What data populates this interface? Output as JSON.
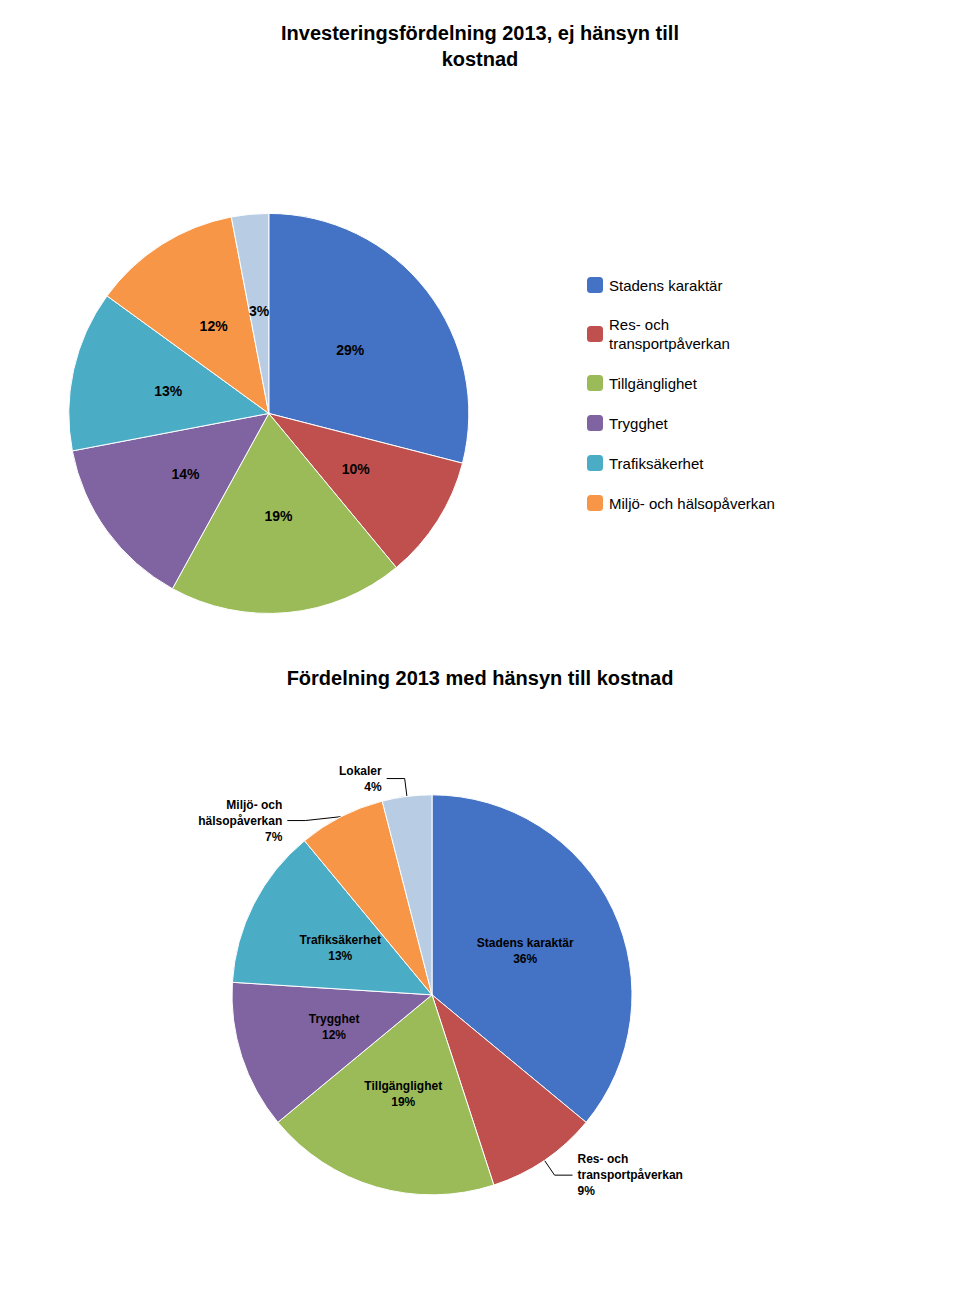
{
  "chart_data": [
    {
      "type": "pie",
      "title": "Investeringsfördelning 2013, ej hänsyn till\nkostnad",
      "categories": [
        "Stadens karaktär",
        "Res- och\ntransportpåverkan",
        "Tillgänglighet",
        "Trygghet",
        "Trafiksäkerhet",
        "Miljö- och hälsopåverkan",
        null
      ],
      "values": [
        29,
        10,
        19,
        14,
        13,
        12,
        3
      ],
      "value_labels": [
        "29%",
        "10%",
        "19%",
        "14%",
        "13%",
        "12%",
        "3%"
      ],
      "colors": [
        "#4472C4",
        "#C0504D",
        "#9BBB59",
        "#8064A2",
        "#4BACC6",
        "#F79646",
        "#B8CCE4"
      ],
      "data_labels": true,
      "legend": "right"
    },
    {
      "type": "pie",
      "title": "Fördelning 2013 med hänsyn till kostnad",
      "categories": [
        "Stadens karaktär",
        "Res- och\ntransportpåverkan",
        "Tillgänglighet",
        "Trygghet",
        "Trafiksäkerhet",
        "Miljö- och\nhälsopåverkan",
        "Lokaler"
      ],
      "values": [
        36,
        9,
        19,
        12,
        13,
        7,
        4
      ],
      "value_labels": [
        "36%",
        "9%",
        "19%",
        "12%",
        "13%",
        "7%",
        "4%"
      ],
      "colors": [
        "#4472C4",
        "#C0504D",
        "#9BBB59",
        "#8064A2",
        "#4BACC6",
        "#F79646",
        "#B8CCE4"
      ],
      "data_labels": true
    }
  ]
}
